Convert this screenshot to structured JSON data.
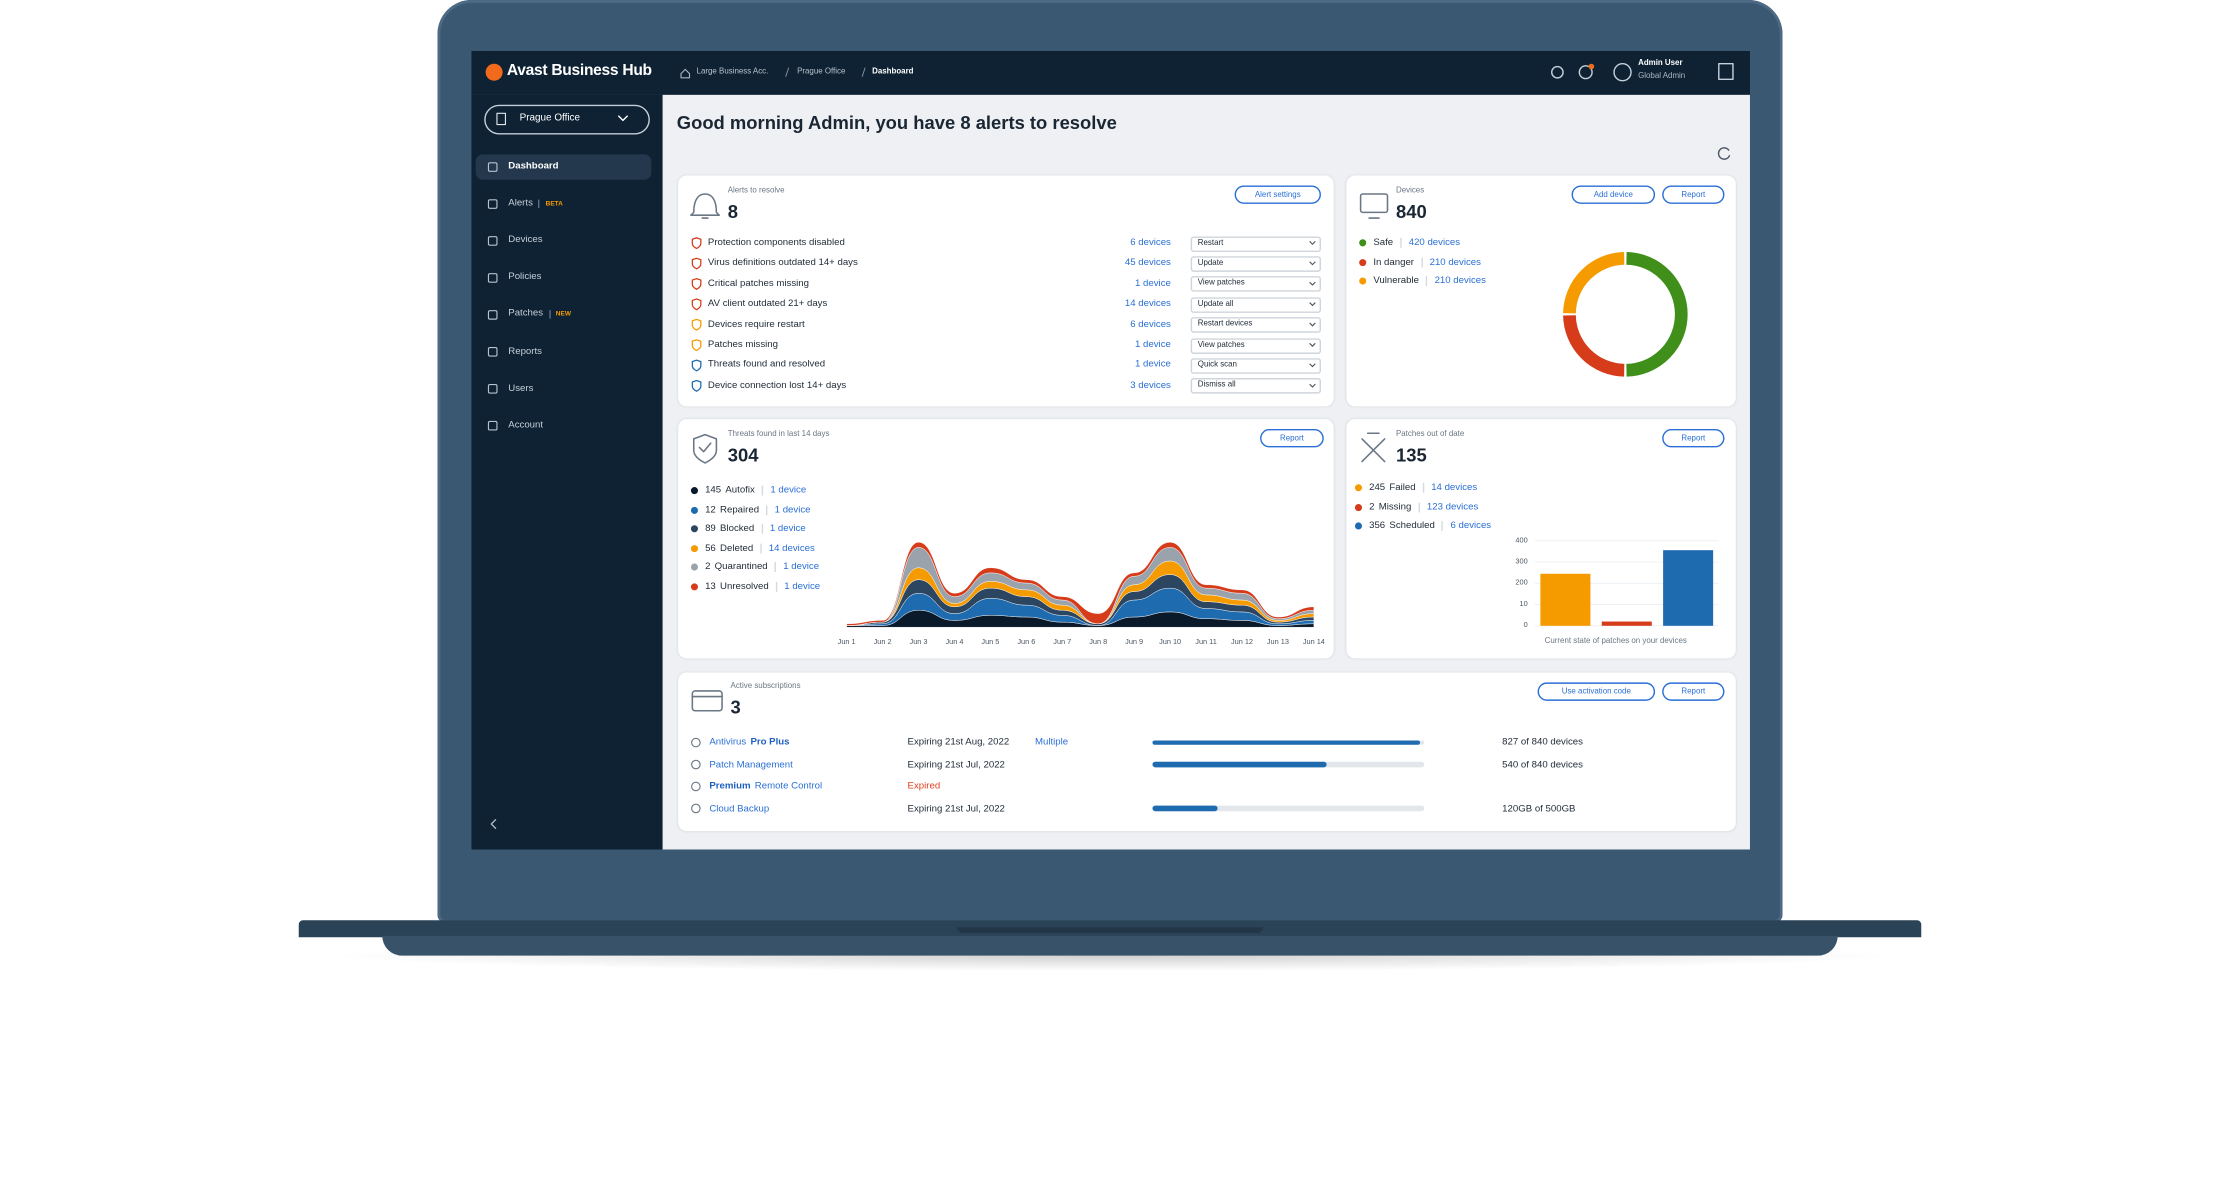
{
  "header": {
    "logo": "Avast Business Hub",
    "breadcrumb": [
      "Large Business Acc.",
      "Prague Office",
      "Dashboard"
    ],
    "user_name": "Admin User",
    "user_role": "Global Admin"
  },
  "sidebar": {
    "site": "Prague Office",
    "nav": [
      {
        "label": "Dashboard"
      },
      {
        "label": "Alerts",
        "badge": "BETA"
      },
      {
        "label": "Devices"
      },
      {
        "label": "Policies"
      },
      {
        "label": "Patches",
        "badge": "NEW"
      },
      {
        "label": "Reports"
      },
      {
        "label": "Users"
      },
      {
        "label": "Account"
      }
    ]
  },
  "greeting": "Good morning Admin, you have 8 alerts to resolve",
  "alerts": {
    "caption": "Alerts to resolve",
    "count": 8,
    "button": "Alert settings",
    "rows": [
      {
        "label": "Protection components disabled",
        "devices": "6 devices",
        "action": "Restart",
        "icon_color": "#d63b1a"
      },
      {
        "label": "Virus definitions outdated 14+ days",
        "devices": "45 devices",
        "action": "Update",
        "icon_color": "#d63b1a"
      },
      {
        "label": "Critical patches missing",
        "devices": "1 device",
        "action": "View patches",
        "icon_color": "#d63b1a"
      },
      {
        "label": "AV client outdated 21+ days",
        "devices": "14 devices",
        "action": "Update all",
        "icon_color": "#d63b1a"
      },
      {
        "label": "Devices require restart",
        "devices": "6 devices",
        "action": "Restart devices",
        "icon_color": "#f59b00"
      },
      {
        "label": "Patches missing",
        "devices": "1 device",
        "action": "View patches",
        "icon_color": "#f59b00"
      },
      {
        "label": "Threats found and resolved",
        "devices": "1 device",
        "action": "Quick scan",
        "icon_color": "#1e6bb0"
      },
      {
        "label": "Device connection lost 14+ days",
        "devices": "3 devices",
        "action": "Dismiss all",
        "icon_color": "#1e6bb0"
      }
    ]
  },
  "devices": {
    "caption": "Devices",
    "count": 840,
    "buttons": [
      "Add device",
      "Report"
    ]
  },
  "threats": {
    "caption": "Threats found in last 14 days",
    "count": 304,
    "button": "Report"
  },
  "patches": {
    "caption": "Patches out of date",
    "count": 135,
    "button": "Report"
  },
  "subscriptions": {
    "caption": "Active subscriptions",
    "count": 3,
    "buttons": [
      "Use activation code",
      "Report"
    ],
    "rows": [
      {
        "name": [
          "Antivirus",
          "Pro Plus"
        ],
        "bold": [
          false,
          true
        ],
        "status": "Expiring 21st Aug, 2022",
        "extra": "Multiple",
        "used": 827,
        "total": 840,
        "usage": "827 of 840 devices"
      },
      {
        "name": [
          "Patch Management"
        ],
        "bold": [
          false
        ],
        "status": "Expiring 21st Jul, 2022",
        "used": 540,
        "total": 840,
        "usage": "540 of 840 devices"
      },
      {
        "name": [
          "Premium",
          "Remote Control"
        ],
        "bold": [
          true,
          false
        ],
        "status": "Expired",
        "status_color": "#e0401f"
      },
      {
        "name": [
          "Cloud Backup"
        ],
        "bold": [
          false
        ],
        "status": "Expiring 21st Jul, 2022",
        "used": 120,
        "total": 500,
        "usage": "120GB of 500GB"
      }
    ]
  },
  "chart_data": [
    {
      "type": "donut",
      "categories": [
        "Safe",
        "In danger",
        "Vulnerable"
      ],
      "values": [
        420,
        210,
        210
      ],
      "value_labels": [
        "420 devices",
        "210 devices",
        "210 devices"
      ],
      "colors": [
        "#3f8f1a",
        "#d63b1a",
        "#f59b00"
      ]
    },
    {
      "type": "stream",
      "x": [
        "Jun 1",
        "Jun 2",
        "Jun 3",
        "Jun 4",
        "Jun 5",
        "Jun 6",
        "Jun 7",
        "Jun 8",
        "Jun 9",
        "Jun 10",
        "Jun 11",
        "Jun 12",
        "Jun 13",
        "Jun 14"
      ],
      "series": [
        {
          "name": "Autofix",
          "total": 145,
          "devices": "1 device",
          "color": "#0b1a2b",
          "values": [
            1,
            1,
            10,
            4,
            7,
            6,
            3,
            1,
            6,
            9,
            5,
            4,
            1,
            2
          ]
        },
        {
          "name": "Repaired",
          "total": 12,
          "devices": "1 device",
          "color": "#1e6bb0",
          "values": [
            0,
            1,
            10,
            4,
            10,
            7,
            4,
            0,
            10,
            14,
            6,
            5,
            1,
            2
          ]
        },
        {
          "name": "Blocked",
          "total": 89,
          "devices": "1 device",
          "color": "#2c4560",
          "values": [
            0,
            1,
            8,
            4,
            6,
            5,
            3,
            1,
            5,
            8,
            4,
            4,
            1,
            2
          ]
        },
        {
          "name": "Deleted",
          "total": 56,
          "devices": "14 devices",
          "color": "#f59b00",
          "values": [
            0,
            0,
            7,
            2,
            4,
            4,
            3,
            0,
            4,
            8,
            4,
            3,
            1,
            2
          ]
        },
        {
          "name": "Quarantined",
          "total": 2,
          "devices": "1 device",
          "color": "#9aa3ac",
          "values": [
            0,
            0,
            12,
            4,
            5,
            4,
            3,
            0,
            5,
            8,
            4,
            4,
            1,
            2
          ]
        },
        {
          "name": "Unresolved",
          "total": 13,
          "devices": "1 device",
          "color": "#d63b1a",
          "values": [
            1,
            1,
            3,
            2,
            3,
            2,
            2,
            6,
            2,
            3,
            2,
            2,
            1,
            2
          ]
        }
      ]
    },
    {
      "type": "bar",
      "categories": [
        "Failed",
        "Missing",
        "Scheduled"
      ],
      "values": [
        245,
        2,
        356
      ],
      "devices": [
        "14 devices",
        "123 devices",
        "6 devices"
      ],
      "colors": [
        "#f59b00",
        "#d63b1a",
        "#1e6bb0"
      ],
      "ylim": [
        0,
        400
      ],
      "yticks": [
        0,
        10,
        200,
        300,
        400
      ],
      "scale": "piecewise",
      "grid": true,
      "caption": "Current state of patches on your devices"
    }
  ]
}
